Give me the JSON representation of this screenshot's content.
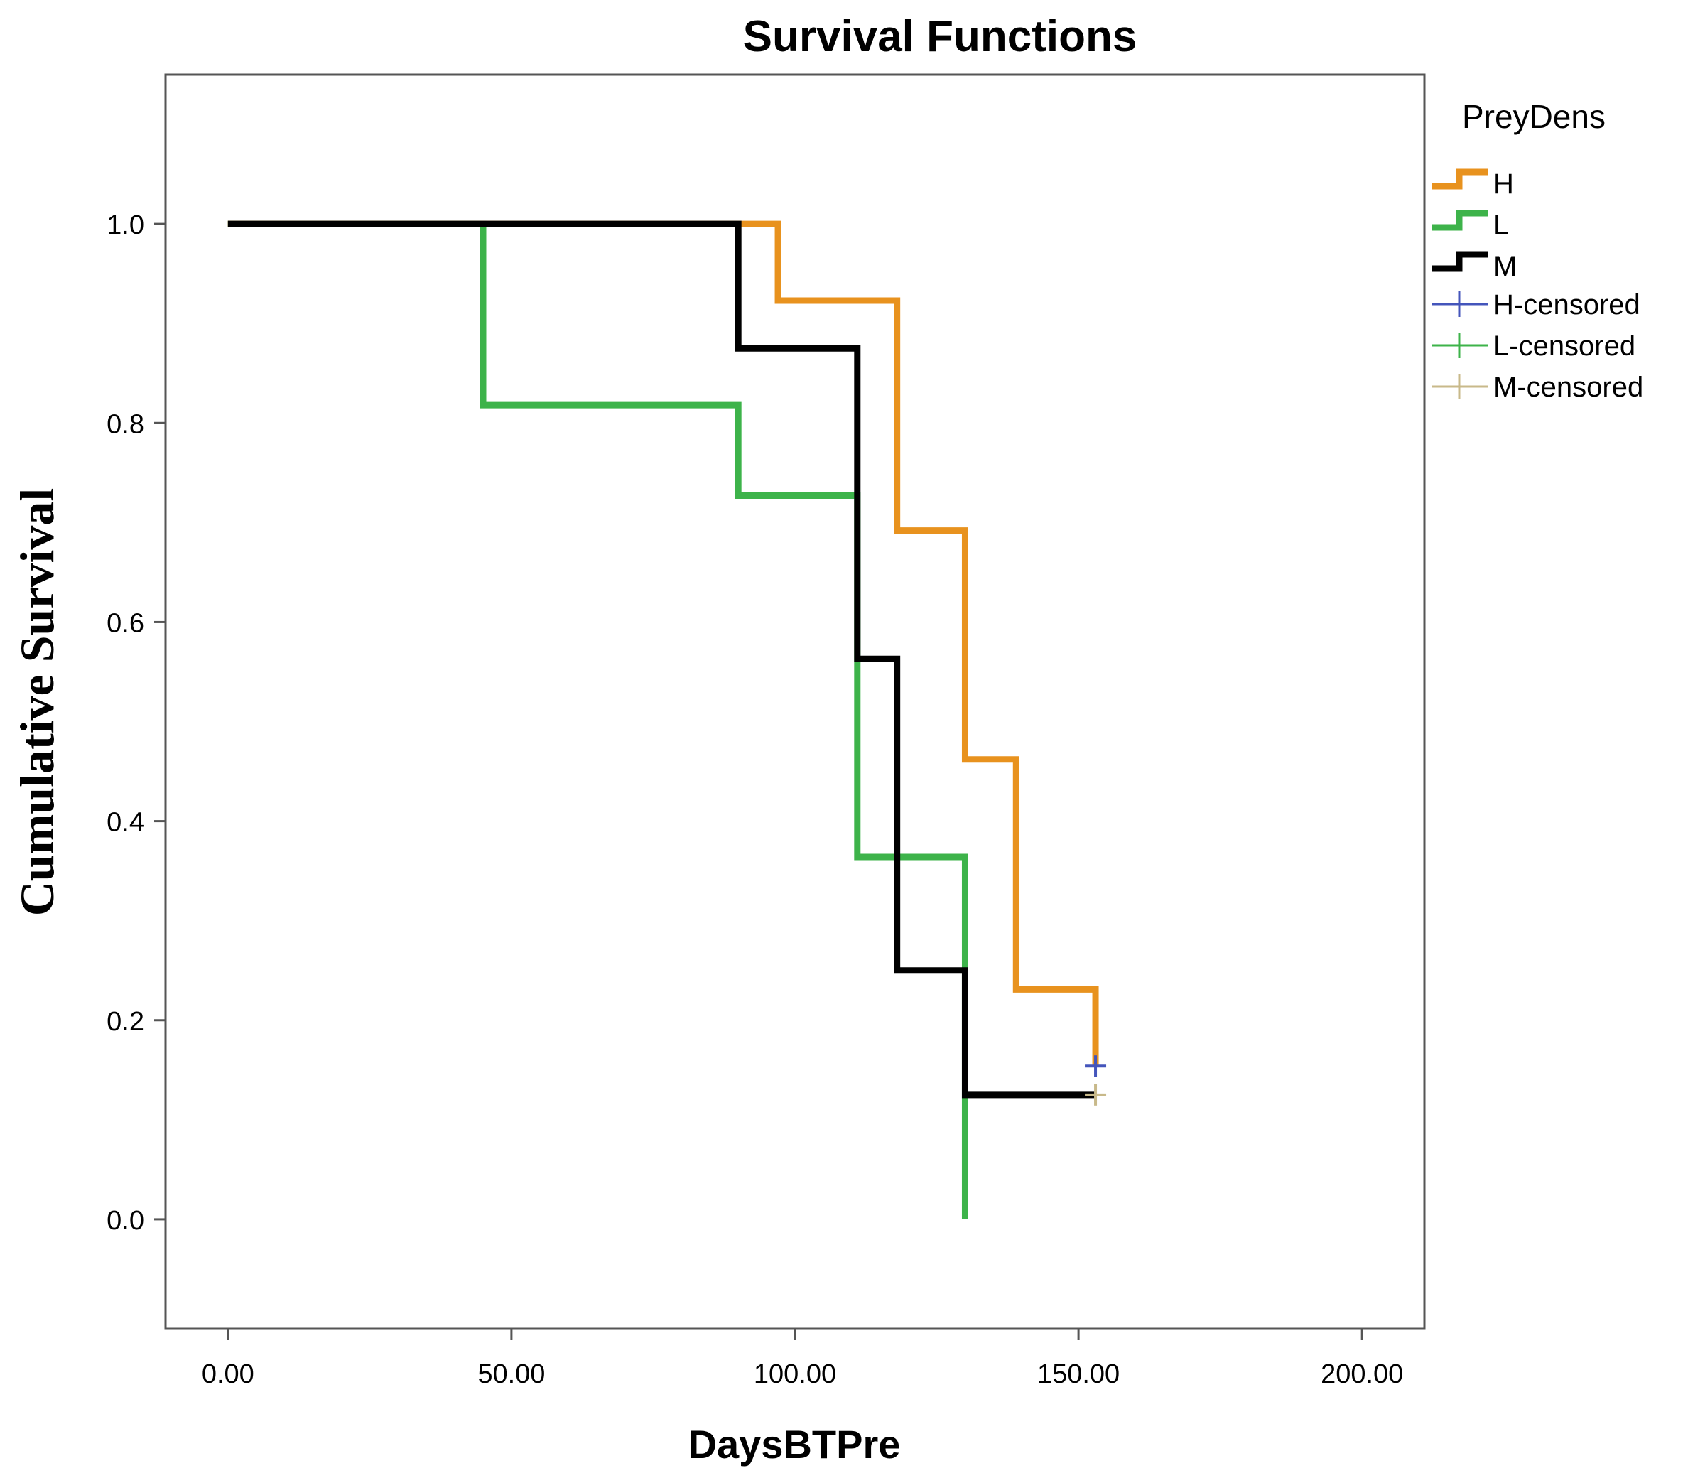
{
  "chart_data": {
    "type": "line",
    "subtype": "step",
    "title": "Survival Functions",
    "xlabel": "DaysBTPre",
    "ylabel": "Cumulative Survival",
    "xlim": [
      -11,
      211
    ],
    "ylim": [
      -0.11,
      1.15
    ],
    "xticks": [
      0,
      50,
      100,
      150,
      200
    ],
    "xtick_labels": [
      "0.00",
      "50.00",
      "100.00",
      "150.00",
      "200.00"
    ],
    "yticks": [
      0.0,
      0.2,
      0.4,
      0.6,
      0.8,
      1.0
    ],
    "ytick_labels": [
      "0.0",
      "0.2",
      "0.4",
      "0.6",
      "0.8",
      "1.0"
    ],
    "legend_title": "PreyDens",
    "legend_position": "right",
    "series": [
      {
        "name": "H",
        "color": "#E8921E",
        "x": [
          0,
          97,
          118,
          130,
          139,
          153
        ],
        "y": [
          1.0,
          0.923,
          0.692,
          0.462,
          0.231,
          0.154
        ]
      },
      {
        "name": "L",
        "color": "#3DB34A",
        "x": [
          0,
          45,
          90,
          111,
          130
        ],
        "y": [
          1.0,
          0.818,
          0.727,
          0.364,
          0.0
        ]
      },
      {
        "name": "M",
        "color": "#000000",
        "x": [
          0,
          90,
          111,
          118,
          130,
          153
        ],
        "y": [
          1.0,
          0.875,
          0.563,
          0.25,
          0.125,
          0.125
        ]
      }
    ],
    "censored": [
      {
        "name": "H-censored",
        "color": "#4455BB",
        "x": 153,
        "y": 0.154
      },
      {
        "name": "L-censored",
        "color": "#3DB34A",
        "x": null,
        "y": null
      },
      {
        "name": "M-censored",
        "color": "#C8B98A",
        "x": 153,
        "y": 0.125
      }
    ]
  }
}
